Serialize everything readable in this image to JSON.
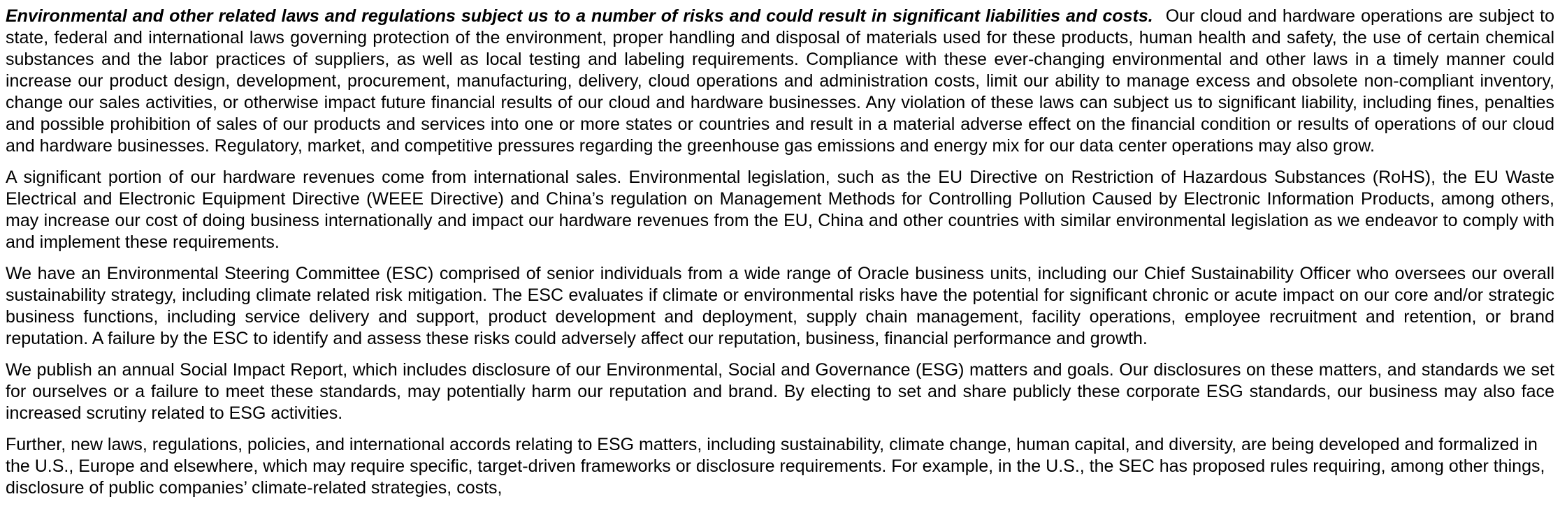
{
  "section": {
    "heading": "Environmental and other related laws and regulations subject us to a number of risks and could result in significant liabilities and costs.",
    "paragraphs": [
      "Our cloud and hardware operations are subject to state, federal and international laws governing protection of the environment, proper handling and disposal of materials used for these products, human health and safety, the use of certain chemical substances and the labor practices of suppliers, as well as local testing and labeling requirements. Compliance with these ever-changing environmental and other laws in a timely manner could increase our product design, development, procurement, manufacturing, delivery, cloud operations and administration costs, limit our ability to manage excess and obsolete non-compliant inventory, change our sales activities, or otherwise impact future financial results of our cloud and hardware businesses. Any violation of these laws can subject us to significant liability, including fines, penalties and possible prohibition of sales of our products and services into one or more states or countries and result in a material adverse effect on the financial condition or results of operations of our cloud and hardware businesses. Regulatory, market, and competitive pressures regarding the greenhouse gas emissions and energy mix for our data center operations may also grow.",
      "A significant portion of our hardware revenues come from international sales. Environmental legislation, such as the EU Directive on Restriction of Hazardous Substances (RoHS), the EU Waste Electrical and Electronic Equipment Directive (WEEE Directive) and China’s regulation on Management Methods for Controlling Pollution Caused by Electronic Information Products, among others, may increase our cost of doing business internationally and impact our hardware revenues from the EU, China and other countries with similar environmental legislation as we endeavor to comply with and implement these requirements.",
      "We have an Environmental Steering Committee (ESC) comprised of senior individuals from a wide range of Oracle business units, including our Chief Sustainability Officer who oversees our overall sustainability strategy, including climate related risk mitigation. The ESC evaluates if climate or environmental risks have the potential for significant chronic or acute impact on our core and/or strategic business functions, including service delivery and support, product development and deployment, supply chain management, facility operations, employee recruitment and retention, or brand reputation. A failure by the ESC to identify and assess these risks could adversely affect our reputation, business, financial performance and growth.",
      "We publish an annual Social Impact Report, which includes disclosure of our Environmental, Social and Governance (ESG) matters and goals. Our disclosures on these matters, and standards we set for ourselves or a failure to meet these standards, may potentially harm our reputation and brand. By electing to set and share publicly these corporate ESG standards, our business may also face increased scrutiny related to ESG activities.",
      "Further, new laws, regulations, policies, and international accords relating to ESG matters, including sustainability, climate change, human capital, and diversity, are being developed and formalized in the U.S., Europe and elsewhere, which may require specific, target-driven frameworks or disclosure requirements. For example, in the U.S., the SEC has proposed rules requiring, among other things, disclosure of public companies’ climate-related strategies, costs,"
    ]
  }
}
